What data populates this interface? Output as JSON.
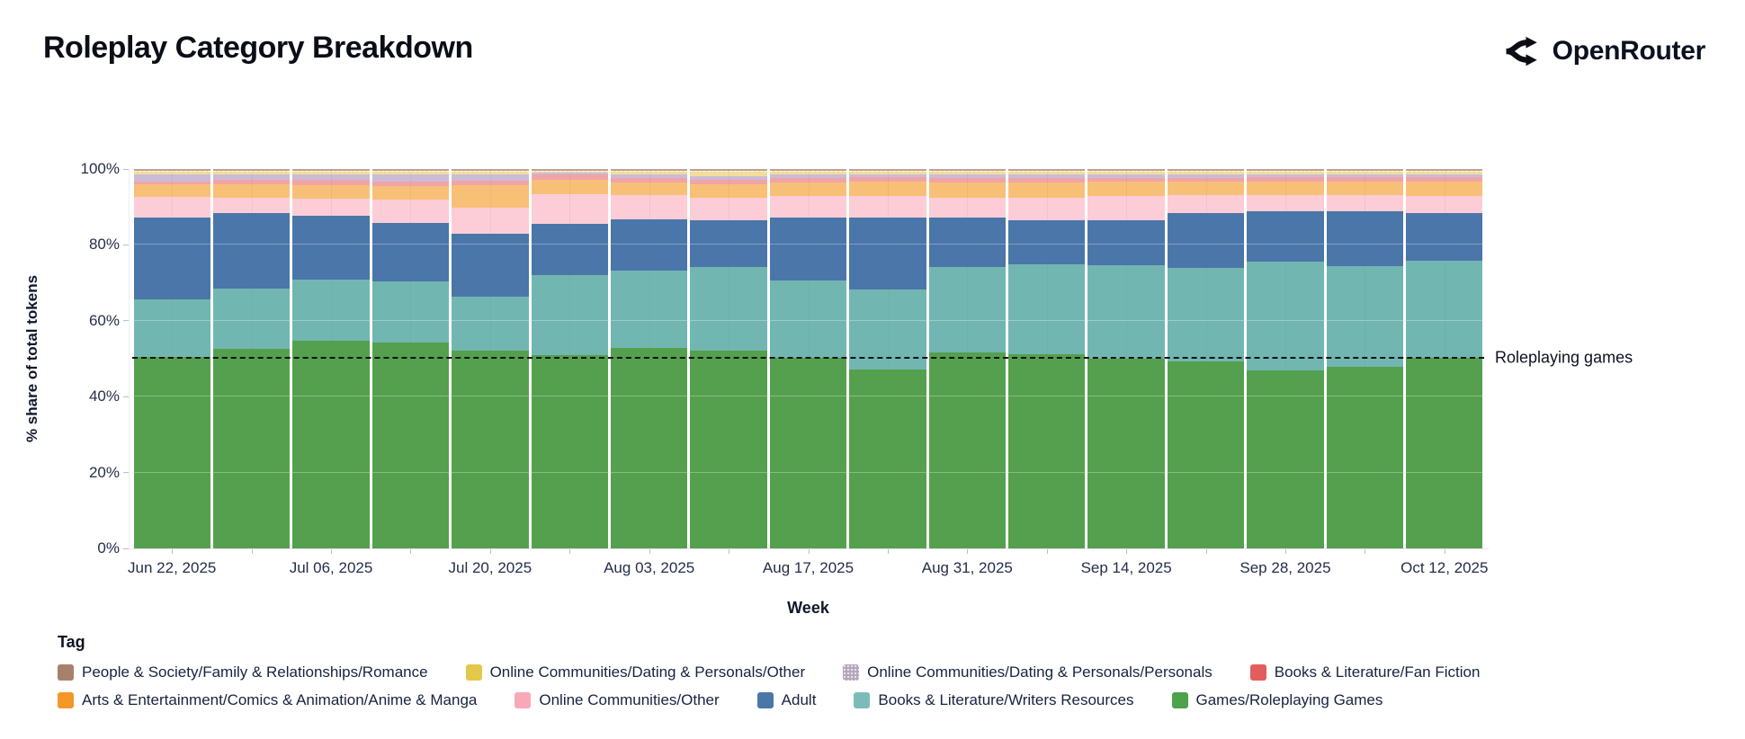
{
  "header": {
    "title": "Roleplay Category Breakdown",
    "brand": "OpenRouter"
  },
  "chart_data": {
    "type": "bar",
    "stacked": true,
    "orientation": "vertical",
    "title": "Roleplay Category Breakdown",
    "xlabel": "Week",
    "ylabel": "% share of total tokens",
    "ylim": [
      0,
      100
    ],
    "ytick_labels": [
      "0%",
      "20%",
      "40%",
      "60%",
      "80%",
      "100%"
    ],
    "xtick_labels": [
      "Jun 22, 2025",
      "Jul 06, 2025",
      "Jul 20, 2025",
      "Aug 03, 2025",
      "Aug 17, 2025",
      "Aug 31, 2025",
      "Sep 14, 2025",
      "Sep 28, 2025",
      "Oct 12, 2025"
    ],
    "weeks": [
      "Jun 22, 2025",
      "Jun 29, 2025",
      "Jul 06, 2025",
      "Jul 13, 2025",
      "Jul 20, 2025",
      "Jul 27, 2025",
      "Aug 03, 2025",
      "Aug 10, 2025",
      "Aug 17, 2025",
      "Aug 24, 2025",
      "Aug 31, 2025",
      "Sep 07, 2025",
      "Sep 14, 2025",
      "Sep 21, 2025",
      "Sep 28, 2025",
      "Oct 05, 2025",
      "Oct 12, 2025"
    ],
    "legend_title": "Tag",
    "legend_position": "bottom-left",
    "grid": true,
    "annotation": {
      "text": "Roleplaying games",
      "y": 50,
      "line_style": "dashed",
      "line_color": "#101316"
    },
    "series": [
      {
        "name": "Games/Roleplaying Games",
        "legend_color": "#4da24c",
        "bar_color": "#55a04e",
        "values": [
          50.5,
          52.5,
          54.7,
          54.2,
          52.1,
          51.0,
          52.9,
          52.1,
          50.2,
          47.2,
          51.7,
          51.3,
          50.1,
          49.4,
          47.0,
          47.8,
          50.2
        ]
      },
      {
        "name": "Books & Literature/Writers Resources",
        "legend_color": "#7cbcb8",
        "bar_color": "#72b6b2",
        "values": [
          15.2,
          16.0,
          16.2,
          16.2,
          14.3,
          21.0,
          20.3,
          22.1,
          20.5,
          21.1,
          22.5,
          23.7,
          24.5,
          24.5,
          28.5,
          26.5,
          25.6
        ]
      },
      {
        "name": "Adult",
        "legend_color": "#4a77a8",
        "bar_color": "#4a76a9",
        "values": [
          21.6,
          20.0,
          16.8,
          15.3,
          16.6,
          13.5,
          13.5,
          12.3,
          16.6,
          19.0,
          12.9,
          11.5,
          12.0,
          14.6,
          13.4,
          14.6,
          12.7
        ]
      },
      {
        "name": "Online Communities/Other",
        "legend_color": "#f9a8b8",
        "bar_color": "#fccdd6",
        "values": [
          5.4,
          4.0,
          4.5,
          6.3,
          6.7,
          7.9,
          6.5,
          5.9,
          5.7,
          5.5,
          5.3,
          5.9,
          6.2,
          4.7,
          4.3,
          4.2,
          4.3
        ]
      },
      {
        "name": "Arts & Entertainment/Comics & Animation/Anime & Manga",
        "legend_color": "#f49628",
        "bar_color": "#f8c077",
        "values": [
          3.3,
          3.5,
          3.6,
          3.4,
          6.0,
          3.8,
          3.2,
          3.6,
          3.4,
          4.0,
          4.1,
          4.0,
          3.8,
          3.4,
          3.6,
          3.7,
          3.9
        ]
      },
      {
        "name": "Books & Literature/Fan Fiction",
        "legend_color": "#e25e5e",
        "bar_color": "#f0a4a8",
        "values": [
          0.6,
          1.2,
          1.4,
          1.3,
          1.2,
          1.3,
          1.2,
          1.2,
          1.2,
          1.1,
          1.1,
          1.2,
          1.1,
          1.1,
          1.0,
          1.0,
          1.1
        ]
      },
      {
        "name": "Online Communities/Dating & Personals/Personals",
        "legend_color": "#b2a4ba",
        "bar_color": "#cbbcd6",
        "pattern": "dots",
        "values": [
          1.9,
          1.3,
          1.4,
          2.0,
          1.8,
          0.5,
          1.0,
          1.0,
          1.0,
          0.8,
          0.9,
          0.9,
          0.9,
          0.9,
          0.8,
          0.8,
          0.8
        ]
      },
      {
        "name": "Online Communities/Dating & Personals/Other",
        "legend_color": "#e3c84b",
        "bar_color": "#f2dd9d",
        "dash_top": true,
        "values": [
          1.1,
          1.0,
          1.0,
          0.9,
          0.9,
          0.6,
          1.0,
          1.4,
          1.0,
          0.9,
          1.1,
          1.1,
          1.0,
          1.0,
          1.0,
          1.0,
          1.0
        ]
      },
      {
        "name": "People & Society/Family & Relationships/Romance",
        "legend_color": "#a9806d",
        "bar_color": "#c0a18d",
        "values": [
          0.4,
          0.5,
          0.4,
          0.4,
          0.4,
          0.4,
          0.4,
          0.4,
          0.4,
          0.4,
          0.4,
          0.4,
          0.4,
          0.4,
          0.4,
          0.4,
          0.4
        ]
      }
    ],
    "legend_rows": [
      4,
      5
    ]
  }
}
